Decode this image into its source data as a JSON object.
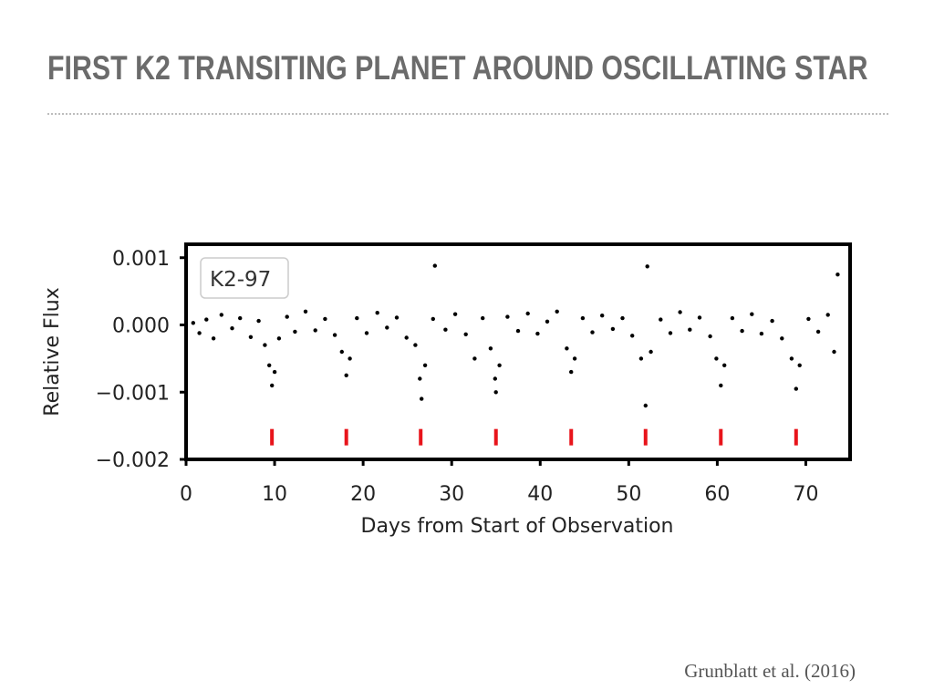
{
  "slide": {
    "title": "FIRST K2 TRANSITING PLANET AROUND OSCILLATING STAR",
    "citation": "Grunblatt et al. (2016)"
  },
  "chart_data": {
    "type": "scatter",
    "title": "",
    "xlabel": "Days from Start of Observation",
    "ylabel": "Relative Flux",
    "legend_label": "K2-97",
    "legend_placement": "top-left",
    "xlim": [
      0,
      75
    ],
    "ylim": [
      -0.002,
      0.0012
    ],
    "x_ticks": [
      0,
      10,
      20,
      30,
      40,
      50,
      60,
      70
    ],
    "x_tick_labels": [
      "0",
      "10",
      "20",
      "30",
      "40",
      "50",
      "60",
      "70"
    ],
    "y_ticks": [
      -0.002,
      -0.001,
      0.0,
      0.001
    ],
    "y_tick_labels": [
      "−0.002",
      "−0.001",
      "0.000",
      "0.001"
    ],
    "grid": false,
    "point_color": "#000000",
    "marker_color": "#e8141b",
    "transit_markers_x": [
      9.7,
      18.1,
      26.5,
      35.0,
      43.5,
      51.9,
      60.4,
      68.9
    ],
    "transit_marker_y": -0.00167,
    "series": [
      {
        "points": [
          [
            0.8,
            3e-05
          ],
          [
            1.5,
            -0.00012
          ],
          [
            2.3,
            8e-05
          ],
          [
            3.1,
            -0.0002
          ],
          [
            4.0,
            0.00015
          ],
          [
            5.2,
            -5e-05
          ],
          [
            6.1,
            0.0001
          ],
          [
            7.3,
            -0.00018
          ],
          [
            8.2,
            6e-05
          ],
          [
            8.9,
            -0.0003
          ],
          [
            9.4,
            -0.0006
          ],
          [
            9.7,
            -0.0009
          ],
          [
            10.0,
            -0.0007
          ],
          [
            10.5,
            -0.0002
          ],
          [
            11.4,
            0.00012
          ],
          [
            12.3,
            -0.0001
          ],
          [
            13.5,
            0.0002
          ],
          [
            14.6,
            -8e-05
          ],
          [
            15.7,
            9e-05
          ],
          [
            16.8,
            -0.00015
          ],
          [
            17.6,
            -0.0004
          ],
          [
            18.1,
            -0.00075
          ],
          [
            18.5,
            -0.0005
          ],
          [
            19.3,
            0.0001
          ],
          [
            20.4,
            -0.00012
          ],
          [
            21.6,
            0.00018
          ],
          [
            22.7,
            -4e-05
          ],
          [
            23.8,
            0.00011
          ],
          [
            24.9,
            -0.00019
          ],
          [
            25.9,
            -0.0003
          ],
          [
            26.4,
            -0.0008
          ],
          [
            26.6,
            -0.0011
          ],
          [
            27.0,
            -0.0006
          ],
          [
            27.9,
            9e-05
          ],
          [
            28.1,
            0.00088
          ],
          [
            29.3,
            -7e-05
          ],
          [
            30.4,
            0.00016
          ],
          [
            31.6,
            -0.00014
          ],
          [
            32.6,
            -0.0005
          ],
          [
            33.5,
            0.0001
          ],
          [
            34.4,
            -0.00035
          ],
          [
            34.9,
            -0.0008
          ],
          [
            35.0,
            -0.001
          ],
          [
            35.4,
            -0.0006
          ],
          [
            36.3,
            0.00012
          ],
          [
            37.5,
            -9e-05
          ],
          [
            38.6,
            0.00017
          ],
          [
            39.7,
            -0.00013
          ],
          [
            40.8,
            5e-05
          ],
          [
            41.9,
            0.0002
          ],
          [
            43.0,
            -0.00035
          ],
          [
            43.5,
            -0.0007
          ],
          [
            43.9,
            -0.0005
          ],
          [
            44.8,
            0.0001
          ],
          [
            45.9,
            -0.00011
          ],
          [
            47.0,
            0.00014
          ],
          [
            48.2,
            -6e-05
          ],
          [
            49.3,
            0.0001
          ],
          [
            50.4,
            -0.00016
          ],
          [
            51.4,
            -0.0005
          ],
          [
            51.9,
            -0.0012
          ],
          [
            52.1,
            0.00087
          ],
          [
            52.5,
            -0.0004
          ],
          [
            53.6,
            8e-05
          ],
          [
            54.7,
            -0.00012
          ],
          [
            55.8,
            0.00019
          ],
          [
            56.9,
            -7e-05
          ],
          [
            58.0,
            0.00011
          ],
          [
            59.2,
            -0.00017
          ],
          [
            59.9,
            -0.0005
          ],
          [
            60.4,
            -0.0009
          ],
          [
            60.8,
            -0.0006
          ],
          [
            61.7,
            0.0001
          ],
          [
            62.8,
            -9e-05
          ],
          [
            63.9,
            0.00016
          ],
          [
            65.0,
            -0.00013
          ],
          [
            66.2,
            6e-05
          ],
          [
            67.3,
            -0.0002
          ],
          [
            68.4,
            -0.0005
          ],
          [
            68.9,
            -0.00095
          ],
          [
            69.3,
            -0.0006
          ],
          [
            70.3,
            9e-05
          ],
          [
            71.4,
            -0.0001
          ],
          [
            72.5,
            0.00015
          ],
          [
            73.2,
            -0.0004
          ],
          [
            73.6,
            0.00075
          ]
        ]
      }
    ]
  }
}
